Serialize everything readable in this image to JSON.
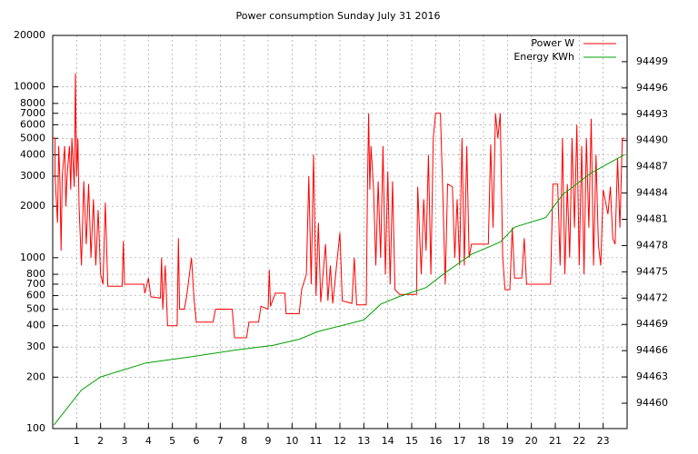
{
  "chart_data": {
    "type": "line",
    "title": "Power consumption Sunday July 31 2016",
    "xlim": [
      0,
      24
    ],
    "xticks": [
      1,
      2,
      3,
      4,
      5,
      6,
      7,
      8,
      9,
      10,
      11,
      12,
      13,
      14,
      15,
      16,
      17,
      18,
      19,
      20,
      21,
      22,
      23
    ],
    "ylim": [
      100,
      20000
    ],
    "ylog": true,
    "yticks": [
      100,
      200,
      300,
      400,
      500,
      600,
      700,
      800,
      1000,
      2000,
      3000,
      4000,
      5000,
      6000,
      7000,
      8000,
      10000,
      20000
    ],
    "y2lim": [
      94457.1,
      94502
    ],
    "y2ticks": [
      94460,
      94463,
      94466,
      94469,
      94472,
      94475,
      94478,
      94481,
      94484,
      94487,
      94490,
      94493,
      94496,
      94499
    ],
    "grid": true,
    "legend": "top-right",
    "series": [
      {
        "name": "Power W",
        "color": "#ff0000",
        "x": [
          0,
          0.1,
          0.1,
          0.2,
          0.25,
          0.3,
          0.35,
          0.4,
          0.5,
          0.55,
          0.6,
          0.7,
          0.75,
          0.8,
          0.9,
          0.95,
          1.0,
          1.05,
          1.1,
          1.2,
          1.3,
          1.4,
          1.5,
          1.6,
          1.7,
          1.8,
          1.9,
          2.0,
          2.1,
          2.2,
          2.3,
          2.9,
          2.95,
          3.0,
          3.8,
          3.85,
          4.0,
          4.1,
          4.5,
          4.55,
          4.6,
          4.7,
          4.8,
          5.2,
          5.25,
          5.3,
          5.5,
          5.6,
          5.8,
          5.9,
          6.0,
          6.7,
          6.8,
          7.5,
          7.6,
          8.1,
          8.2,
          8.6,
          8.7,
          9.0,
          9.05,
          9.1,
          9.3,
          9.7,
          9.75,
          10.3,
          10.4,
          10.6,
          10.7,
          10.8,
          10.9,
          11.0,
          11.1,
          11.2,
          11.4,
          11.5,
          11.6,
          11.7,
          12.0,
          12.1,
          12.5,
          12.6,
          12.7,
          13.1,
          13.15,
          13.2,
          13.25,
          13.3,
          13.4,
          13.5,
          13.6,
          13.7,
          13.8,
          13.9,
          14.0,
          14.1,
          14.2,
          14.3,
          14.5,
          15.2,
          15.25,
          15.4,
          15.5,
          15.6,
          15.7,
          15.8,
          15.9,
          16.0,
          16.2,
          16.3,
          16.4,
          16.5,
          16.7,
          16.8,
          16.9,
          17.0,
          17.1,
          17.2,
          17.3,
          17.4,
          17.5,
          18.2,
          18.3,
          18.4,
          18.5,
          18.6,
          18.7,
          18.8,
          18.9,
          19.1,
          19.2,
          19.3,
          19.6,
          19.7,
          19.8,
          20.8,
          20.9,
          21.1,
          21.2,
          21.3,
          21.4,
          21.5,
          21.6,
          21.7,
          21.8,
          21.9,
          22.0,
          22.1,
          22.2,
          22.3,
          22.4,
          22.5,
          22.6,
          22.7,
          22.8,
          22.9,
          23.0,
          23.2,
          23.3,
          23.4,
          23.5,
          23.6,
          23.7,
          23.8,
          23.9
        ],
        "values": [
          5000,
          5000,
          3000,
          1600,
          4500,
          2900,
          1100,
          3000,
          4500,
          2000,
          3000,
          4500,
          2500,
          5000,
          2600,
          12000,
          3000,
          5000,
          2000,
          900,
          2800,
          1200,
          2700,
          1000,
          2200,
          900,
          1900,
          800,
          700,
          2100,
          680,
          680,
          1250,
          700,
          700,
          620,
          760,
          590,
          580,
          1000,
          500,
          900,
          400,
          400,
          1300,
          500,
          500,
          600,
          1000,
          580,
          420,
          420,
          500,
          500,
          340,
          340,
          420,
          420,
          520,
          500,
          850,
          520,
          620,
          620,
          470,
          470,
          650,
          800,
          3000,
          700,
          4000,
          600,
          1600,
          550,
          1200,
          560,
          900,
          540,
          1400,
          560,
          540,
          1000,
          530,
          530,
          2500,
          7000,
          2500,
          4500,
          2600,
          900,
          2800,
          1000,
          4500,
          800,
          3200,
          700,
          2800,
          650,
          610,
          610,
          2600,
          800,
          2200,
          1100,
          4000,
          800,
          5000,
          7000,
          7000,
          2400,
          700,
          2700,
          2600,
          1000,
          2200,
          900,
          5000,
          900,
          4500,
          1000,
          1200,
          1200,
          4600,
          1500,
          7000,
          5000,
          7000,
          1000,
          650,
          650,
          1500,
          760,
          760,
          1300,
          700,
          700,
          2700,
          2700,
          900,
          5000,
          800,
          2700,
          1000,
          5000,
          1500,
          6000,
          900,
          4500,
          800,
          5000,
          1500,
          6500,
          900,
          4000,
          1200,
          900,
          2500,
          1800,
          2600,
          1300,
          1200,
          3800,
          1500,
          5000,
          5000
        ]
      },
      {
        "name": "Energy KWh",
        "color": "#00a000",
        "axis": "y2",
        "x": [
          0.05,
          1.2,
          2,
          3.9,
          5.8,
          7.7,
          9.2,
          10.3,
          11.1,
          13,
          13.7,
          14.5,
          15.6,
          16.4,
          17.5,
          18.7,
          19.3,
          20.6,
          21.3,
          22.5,
          23.9
        ],
        "values": [
          94457.5,
          94461.5,
          94463.0,
          94464.6,
          94465.3,
          94466.1,
          94466.6,
          94467.3,
          94468.2,
          94469.5,
          94471.3,
          94472.2,
          94473.2,
          94474.9,
          94477.0,
          94478.4,
          94480.1,
          94481.2,
          94483.8,
          94486.3,
          94488.4
        ]
      }
    ]
  }
}
